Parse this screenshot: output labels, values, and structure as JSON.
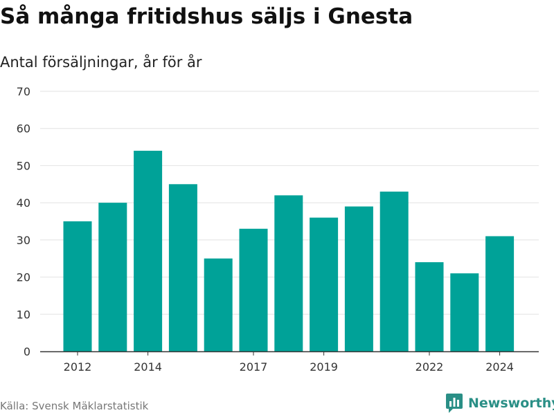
{
  "chart_data": {
    "type": "bar",
    "title": "Så många fritidshus säljs i Gnesta",
    "subtitle": "Antal försäljningar, år för år",
    "source": "Källa: Svensk Mäklarstatistik",
    "brand": "Newsworthy",
    "categories": [
      2012,
      2013,
      2014,
      2015,
      2016,
      2017,
      2018,
      2019,
      2020,
      2021,
      2022,
      2023,
      2024
    ],
    "x_tick_labels": [
      2012,
      2014,
      2017,
      2019,
      2022,
      2024
    ],
    "values": [
      35,
      40,
      54,
      45,
      25,
      33,
      42,
      36,
      39,
      43,
      24,
      21,
      31
    ],
    "ylim": [
      0,
      70
    ],
    "y_ticks": [
      0,
      10,
      20,
      30,
      40,
      50,
      60,
      70
    ],
    "xlabel": "",
    "ylabel": "",
    "grid": true,
    "bar_color": "#00a298",
    "grid_color": "#e2e2e2",
    "axis_color": "#333333"
  }
}
